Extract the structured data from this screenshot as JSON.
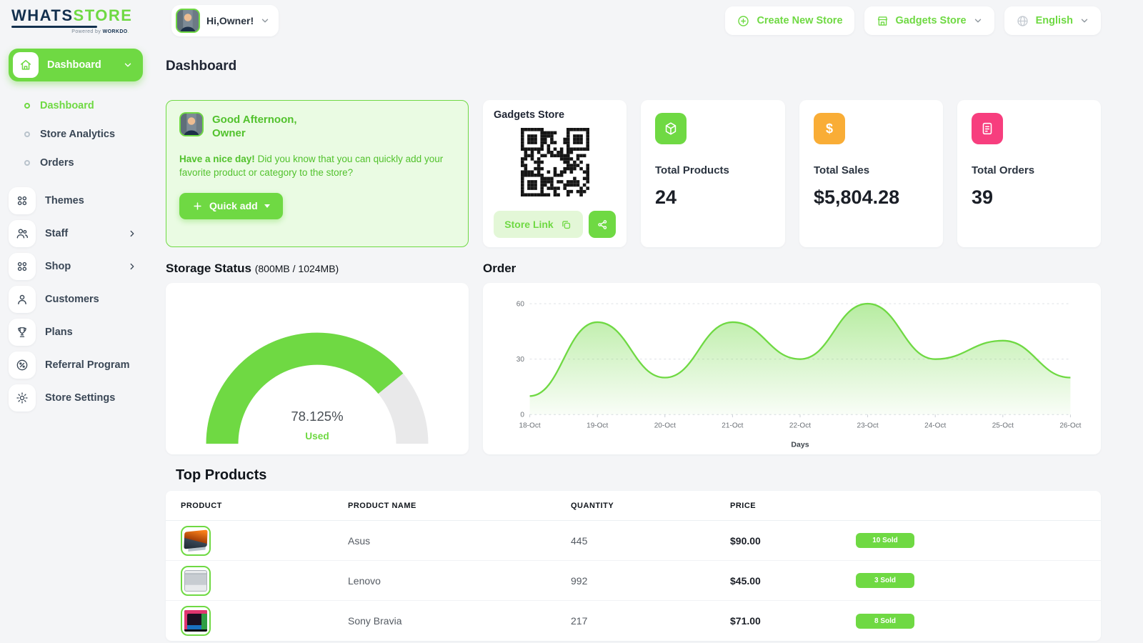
{
  "brand": {
    "part1": "WHATS",
    "part2": "STORE",
    "powered_prefix": "Powered by ",
    "powered_name": "WORKDO"
  },
  "header": {
    "user_chip": {
      "label": "Hi,Owner!"
    },
    "actions": [
      {
        "label": "Create New Store",
        "icon": "plus-circle-icon"
      },
      {
        "label": "Gadgets Store",
        "icon": "storefront-icon"
      },
      {
        "label": "English",
        "icon": "globe-icon"
      }
    ]
  },
  "sidebar": {
    "group": {
      "label": "Dashboard",
      "icon": "home-icon"
    },
    "sub_items": [
      {
        "label": "Dashboard",
        "active": true
      },
      {
        "label": "Store Analytics",
        "active": false
      },
      {
        "label": "Orders",
        "active": false
      }
    ],
    "items": [
      {
        "label": "Themes",
        "icon": "grid-dots-icon"
      },
      {
        "label": "Staff",
        "icon": "users-icon",
        "chevron": true
      },
      {
        "label": "Shop",
        "icon": "grid-dots-icon",
        "chevron": true
      },
      {
        "label": "Customers",
        "icon": "user-icon"
      },
      {
        "label": "Plans",
        "icon": "trophy-icon"
      },
      {
        "label": "Referral Program",
        "icon": "percent-badge-icon"
      },
      {
        "label": "Store Settings",
        "icon": "gear-icon"
      }
    ]
  },
  "page": {
    "title": "Dashboard"
  },
  "greeting": {
    "line1": "Good Afternoon,",
    "line2": "Owner",
    "message_bold": "Have a nice day!",
    "message": " Did you know that you can quickly add your favorite product or category to the store?",
    "quick_add_label": "Quick add"
  },
  "store_card": {
    "title": "Gadgets Store",
    "store_link_label": "Store Link"
  },
  "stats": [
    {
      "label": "Total Products",
      "value": "24",
      "color": "#6fd943",
      "icon": "package-icon"
    },
    {
      "label": "Total Sales",
      "value": "$5,804.28",
      "color": "#f9ad36",
      "icon": "dollar-icon",
      "glyph": "$"
    },
    {
      "label": "Total Orders",
      "value": "39",
      "color": "#f73e7e",
      "icon": "invoice-icon"
    }
  ],
  "storage": {
    "title": "Storage Status",
    "subtitle": "(800MB / 1024MB)",
    "percent": 78.125,
    "percent_label": "78.125%",
    "used_label": "Used",
    "used_color": "#6fd943",
    "track_color": "#e9e9ea"
  },
  "order_section": {
    "title": "Order"
  },
  "chart_data": {
    "type": "area",
    "title": "Order",
    "x": [
      "18-Oct",
      "19-Oct",
      "20-Oct",
      "21-Oct",
      "22-Oct",
      "23-Oct",
      "24-Oct",
      "25-Oct",
      "26-Oct"
    ],
    "values": [
      10,
      50,
      20,
      50,
      30,
      60,
      30,
      40,
      20
    ],
    "xlabel": "Days",
    "ylabel": "",
    "ylim": [
      0,
      60
    ],
    "yticks": [
      0,
      30,
      60
    ],
    "grid": "dashed-horizontal",
    "legend": "none",
    "line_color": "#6fd943"
  },
  "top_products": {
    "title": "Top Products",
    "columns": [
      "PRODUCT",
      "PRODUCT NAME",
      "QUANTITY",
      "PRICE"
    ],
    "rows": [
      {
        "name": "Asus",
        "quantity": "445",
        "price": "$90.00",
        "sold": "10 Sold",
        "art": "asus"
      },
      {
        "name": "Lenovo",
        "quantity": "992",
        "price": "$45.00",
        "sold": "3 Sold",
        "art": "lenovo"
      },
      {
        "name": "Sony Bravia",
        "quantity": "217",
        "price": "$71.00",
        "sold": "8 Sold",
        "art": "sony"
      }
    ]
  },
  "colors": {
    "accent_green": "#6fd943",
    "stat_orange": "#f9ad36",
    "stat_pink": "#f73e7e",
    "navy": "#13304e"
  }
}
